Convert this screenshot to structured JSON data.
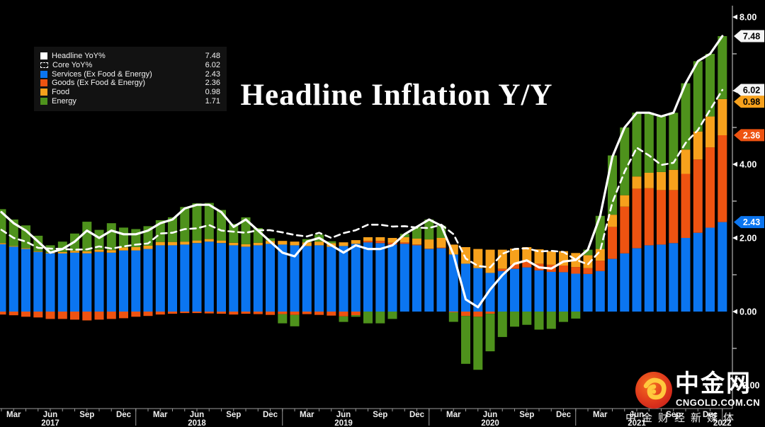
{
  "title": "Headline Inflation Y/Y",
  "legend": {
    "items": [
      {
        "label": "Headline YoY%",
        "value": "7.48",
        "swatch": "line-solid",
        "color": "#ffffff"
      },
      {
        "label": "Core YoY%",
        "value": "6.02",
        "swatch": "line-dashed",
        "color": "#ffffff"
      },
      {
        "label": "Services (Ex Food & Energy)",
        "value": "2.43",
        "swatch": "fill",
        "color": "#0b75f0"
      },
      {
        "label": "Goods (Ex Food & Energy)",
        "value": "2.36",
        "swatch": "fill",
        "color": "#ee5311"
      },
      {
        "label": "Food",
        "value": "0.98",
        "swatch": "fill",
        "color": "#f7a11c"
      },
      {
        "label": "Energy",
        "value": "1.71",
        "swatch": "fill",
        "color": "#4e921c"
      }
    ]
  },
  "watermark": {
    "brand": "中金网",
    "domain": "CNGOLD.COM.CN",
    "tagline": "中金财经新媒体",
    "logo_colors": {
      "circle_outer": "#c9201a",
      "circle_inner": "#ef5a22",
      "swirl": "#ffc83d"
    }
  },
  "chart_data": {
    "type": "bar",
    "subtype": "stacked-bars-with-lines",
    "title": "Headline Inflation Y/Y",
    "xlabel": "",
    "ylabel": "",
    "ylim": [
      -2.7,
      8.3
    ],
    "grid": false,
    "legend_position": "top-left",
    "x": [
      "2017-02",
      "2017-03",
      "2017-04",
      "2017-05",
      "2017-06",
      "2017-07",
      "2017-08",
      "2017-09",
      "2017-10",
      "2017-11",
      "2017-12",
      "2018-01",
      "2018-02",
      "2018-03",
      "2018-04",
      "2018-05",
      "2018-06",
      "2018-07",
      "2018-08",
      "2018-09",
      "2018-10",
      "2018-11",
      "2018-12",
      "2019-01",
      "2019-02",
      "2019-03",
      "2019-04",
      "2019-05",
      "2019-06",
      "2019-07",
      "2019-08",
      "2019-09",
      "2019-10",
      "2019-11",
      "2019-12",
      "2020-01",
      "2020-02",
      "2020-03",
      "2020-04",
      "2020-05",
      "2020-06",
      "2020-07",
      "2020-08",
      "2020-09",
      "2020-10",
      "2020-11",
      "2020-12",
      "2021-01",
      "2021-02",
      "2021-03",
      "2021-04",
      "2021-05",
      "2021-06",
      "2021-07",
      "2021-08",
      "2021-09",
      "2021-10",
      "2021-11",
      "2021-12",
      "2022-01"
    ],
    "series": [
      {
        "name": "Services (Ex Food & Energy)",
        "type": "bar",
        "color": "#0b75f0",
        "values": [
          1.83,
          1.76,
          1.7,
          1.62,
          1.58,
          1.58,
          1.6,
          1.58,
          1.62,
          1.6,
          1.66,
          1.66,
          1.7,
          1.8,
          1.8,
          1.82,
          1.86,
          1.9,
          1.86,
          1.8,
          1.76,
          1.8,
          1.84,
          1.82,
          1.8,
          1.78,
          1.8,
          1.76,
          1.78,
          1.84,
          1.88,
          1.86,
          1.82,
          1.84,
          1.8,
          1.7,
          1.72,
          1.55,
          1.3,
          1.18,
          1.05,
          1.1,
          1.16,
          1.2,
          1.12,
          1.08,
          1.07,
          1.03,
          1.02,
          1.1,
          1.43,
          1.58,
          1.72,
          1.8,
          1.82,
          1.86,
          2.0,
          2.14,
          2.28,
          2.43
        ]
      },
      {
        "name": "Goods (Ex Food & Energy)",
        "type": "bar",
        "color": "#ee5311",
        "values": [
          -0.08,
          -0.1,
          -0.14,
          -0.16,
          -0.2,
          -0.2,
          -0.22,
          -0.24,
          -0.22,
          -0.2,
          -0.18,
          -0.14,
          -0.12,
          -0.08,
          -0.06,
          -0.04,
          -0.04,
          -0.05,
          -0.06,
          -0.08,
          -0.06,
          -0.07,
          -0.09,
          -0.07,
          -0.09,
          -0.07,
          -0.09,
          -0.11,
          -0.13,
          -0.1,
          0.04,
          0.06,
          0.05,
          0.04,
          0.02,
          0.01,
          0.02,
          -0.02,
          -0.12,
          -0.14,
          -0.06,
          0.06,
          0.12,
          0.16,
          0.18,
          0.19,
          0.18,
          0.18,
          0.16,
          0.28,
          0.87,
          1.27,
          1.62,
          1.55,
          1.48,
          1.44,
          1.74,
          1.99,
          2.18,
          2.36
        ]
      },
      {
        "name": "Food",
        "type": "bar",
        "color": "#f7a11c",
        "values": [
          0.03,
          0.02,
          0.02,
          0.02,
          0.02,
          0.04,
          0.05,
          0.06,
          0.06,
          0.07,
          0.08,
          0.09,
          0.09,
          0.09,
          0.09,
          0.08,
          0.07,
          0.07,
          0.07,
          0.07,
          0.07,
          0.07,
          0.08,
          0.1,
          0.1,
          0.1,
          0.1,
          0.1,
          0.1,
          0.1,
          0.1,
          0.1,
          0.13,
          0.14,
          0.16,
          0.25,
          0.26,
          0.27,
          0.45,
          0.52,
          0.63,
          0.52,
          0.43,
          0.39,
          0.39,
          0.37,
          0.39,
          0.38,
          0.35,
          0.32,
          0.33,
          0.31,
          0.33,
          0.42,
          0.49,
          0.55,
          0.66,
          0.76,
          0.84,
          0.98
        ]
      },
      {
        "name": "Energy",
        "type": "bar",
        "color": "#4e921c",
        "values": [
          0.92,
          0.72,
          0.62,
          0.42,
          0.2,
          0.28,
          0.47,
          0.8,
          0.54,
          0.73,
          0.54,
          0.49,
          0.53,
          0.59,
          0.67,
          0.94,
          1.01,
          0.98,
          0.83,
          0.51,
          0.73,
          0.4,
          0.07,
          -0.25,
          -0.31,
          0.09,
          0.19,
          0.05,
          -0.15,
          -0.04,
          -0.32,
          -0.32,
          -0.2,
          0.09,
          0.32,
          0.54,
          0.33,
          -0.26,
          -1.3,
          -1.44,
          -1.02,
          -0.69,
          -0.41,
          -0.36,
          -0.49,
          -0.47,
          -0.28,
          -0.19,
          0.15,
          0.9,
          1.61,
          1.84,
          1.73,
          1.63,
          1.51,
          1.55,
          1.8,
          1.91,
          1.7,
          1.71
        ]
      },
      {
        "name": "Headline YoY%",
        "type": "line",
        "style": "solid",
        "color": "#ffffff",
        "values": [
          2.7,
          2.4,
          2.2,
          1.9,
          1.6,
          1.7,
          1.9,
          2.2,
          2.0,
          2.2,
          2.1,
          2.1,
          2.2,
          2.4,
          2.5,
          2.8,
          2.9,
          2.9,
          2.7,
          2.3,
          2.5,
          2.2,
          1.9,
          1.6,
          1.5,
          1.9,
          2.0,
          1.8,
          1.6,
          1.8,
          1.7,
          1.7,
          1.8,
          2.1,
          2.3,
          2.5,
          2.33,
          1.54,
          0.33,
          0.12,
          0.6,
          0.99,
          1.3,
          1.39,
          1.2,
          1.17,
          1.36,
          1.4,
          1.68,
          2.6,
          4.2,
          5.0,
          5.4,
          5.4,
          5.3,
          5.4,
          6.2,
          6.8,
          7.0,
          7.48
        ]
      },
      {
        "name": "Core YoY%",
        "type": "line",
        "style": "dashed",
        "color": "#ffffff",
        "values": [
          2.22,
          2.0,
          1.9,
          1.73,
          1.71,
          1.7,
          1.68,
          1.69,
          1.77,
          1.71,
          1.77,
          1.82,
          1.85,
          2.12,
          2.14,
          2.24,
          2.26,
          2.35,
          2.2,
          2.17,
          2.14,
          2.21,
          2.21,
          2.15,
          2.08,
          2.04,
          2.14,
          2.0,
          2.13,
          2.21,
          2.36,
          2.36,
          2.31,
          2.32,
          2.28,
          2.27,
          2.36,
          2.1,
          1.44,
          1.24,
          1.2,
          1.57,
          1.7,
          1.72,
          1.63,
          1.65,
          1.62,
          1.41,
          1.28,
          1.65,
          2.96,
          3.8,
          4.45,
          4.24,
          3.98,
          4.04,
          4.58,
          4.93,
          5.48,
          6.02
        ]
      }
    ],
    "y_axis": {
      "major": [
        {
          "v": 8,
          "label": "8.00"
        },
        {
          "v": 6,
          "label": "6.00"
        },
        {
          "v": 4,
          "label": "4.00"
        },
        {
          "v": 2,
          "label": "2.00"
        },
        {
          "v": 0,
          "label": "0.00"
        },
        {
          "v": -2,
          "label": "-2.00"
        }
      ],
      "minor": [
        7,
        5,
        3,
        1,
        -1
      ]
    },
    "axis_badges": [
      {
        "text": "7.48",
        "pos": 7.48,
        "bg": "#f5f5f5",
        "fg": "#000000",
        "series": "Headline YoY%"
      },
      {
        "text": "6.02",
        "pos": 6.02,
        "bg": "#f5f5f5",
        "fg": "#000000",
        "series": "Core YoY%"
      },
      {
        "text": "0.98",
        "pos": 5.7,
        "bg": "#f7a11c",
        "fg": "#000000",
        "series": "Food"
      },
      {
        "text": "2.36",
        "pos": 4.79,
        "bg": "#ee5311",
        "fg": "#ffffff",
        "series": "Goods (Ex Food & Energy)"
      },
      {
        "text": "2.43",
        "pos": 2.43,
        "bg": "#0b75f0",
        "fg": "#ffffff",
        "series": "Services (Ex Food & Energy)"
      }
    ],
    "x_axis": {
      "month_ticks": [
        {
          "m": 1,
          "label": "Mar"
        },
        {
          "m": 4,
          "label": "Jun"
        },
        {
          "m": 7,
          "label": "Sep"
        },
        {
          "m": 10,
          "label": "Dec"
        },
        {
          "m": 13,
          "label": "Mar"
        },
        {
          "m": 16,
          "label": "Jun"
        },
        {
          "m": 19,
          "label": "Sep"
        },
        {
          "m": 22,
          "label": "Dec"
        },
        {
          "m": 25,
          "label": "Mar"
        },
        {
          "m": 28,
          "label": "Jun"
        },
        {
          "m": 31,
          "label": "Sep"
        },
        {
          "m": 34,
          "label": "Dec"
        },
        {
          "m": 37,
          "label": "Mar"
        },
        {
          "m": 40,
          "label": "Jun"
        },
        {
          "m": 43,
          "label": "Sep"
        },
        {
          "m": 46,
          "label": "Dec"
        },
        {
          "m": 49,
          "label": "Mar"
        },
        {
          "m": 52,
          "label": "Jun"
        },
        {
          "m": 55,
          "label": "Sep"
        },
        {
          "m": 58,
          "label": "Dec"
        }
      ],
      "years": [
        {
          "m": 4,
          "label": "2017"
        },
        {
          "m": 16,
          "label": "2018"
        },
        {
          "m": 28,
          "label": "2019"
        },
        {
          "m": 40,
          "label": "2020"
        },
        {
          "m": 52,
          "label": "2021"
        },
        {
          "m": 59,
          "label": "2022"
        }
      ],
      "year_separators": [
        11,
        23,
        35,
        47,
        59
      ]
    }
  }
}
